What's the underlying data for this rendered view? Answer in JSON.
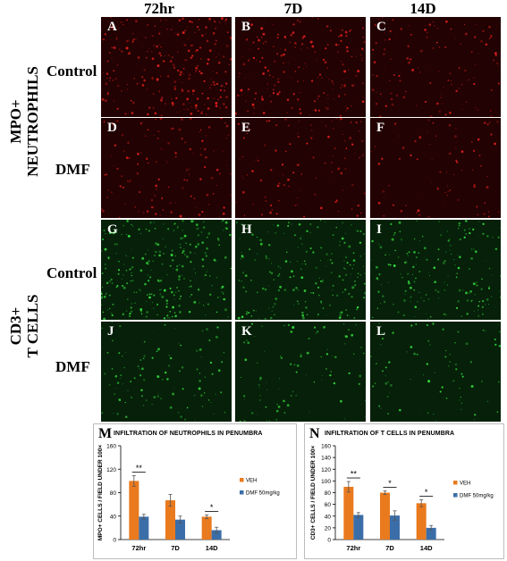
{
  "columns": [
    "72hr",
    "7D",
    "14D"
  ],
  "groups": {
    "mpo": "MPO+\nNEUTROPHILS",
    "cd3": "CD3+\nT CELLS"
  },
  "rows": [
    "Control",
    "DMF",
    "Control",
    "DMF"
  ],
  "panels": [
    {
      "letter": "A",
      "stain": "red",
      "density": 0.9
    },
    {
      "letter": "B",
      "stain": "red",
      "density": 0.6
    },
    {
      "letter": "C",
      "stain": "red",
      "density": 0.3
    },
    {
      "letter": "D",
      "stain": "red",
      "density": 0.35
    },
    {
      "letter": "E",
      "stain": "red",
      "density": 0.3
    },
    {
      "letter": "F",
      "stain": "red",
      "density": 0.15
    },
    {
      "letter": "G",
      "stain": "green",
      "density": 0.9
    },
    {
      "letter": "H",
      "stain": "green",
      "density": 0.6
    },
    {
      "letter": "I",
      "stain": "green",
      "density": 0.55
    },
    {
      "letter": "J",
      "stain": "green",
      "density": 0.25
    },
    {
      "letter": "K",
      "stain": "green",
      "density": 0.2
    },
    {
      "letter": "L",
      "stain": "green",
      "density": 0.15
    }
  ],
  "colors": {
    "veh": "#e97a1e",
    "dmf": "#3b6ea8",
    "red_stain": "#e0201c",
    "green_stain": "#37e23f"
  },
  "chart_data": [
    {
      "letter": "M",
      "type": "bar",
      "title": "INFILTRATION OF  NEUTROPHILS IN PENUMBRA",
      "ylabel": "MPO+ CELLS / FIELD UNDER 100×",
      "categories": [
        "72hr",
        "7D",
        "14D"
      ],
      "ylim": [
        0,
        160
      ],
      "yticks": [
        0,
        40,
        80,
        120,
        160
      ],
      "series": [
        {
          "name": "VEH",
          "values": [
            100,
            67,
            39
          ],
          "errors": [
            9,
            10,
            3
          ]
        },
        {
          "name": "DMF 50mg/kg",
          "values": [
            39,
            34,
            16
          ],
          "errors": [
            4,
            6,
            5
          ]
        }
      ],
      "significance": [
        "**",
        "",
        "*"
      ]
    },
    {
      "letter": "N",
      "type": "bar",
      "title": "INFILTRATION OF  T CELLS IN PENUMBRA",
      "ylabel": "CD3+ CELLS / FIELD UNDER 100×",
      "categories": [
        "72hr",
        "7D",
        "14D"
      ],
      "ylim": [
        0,
        160
      ],
      "yticks": [
        0,
        20,
        40,
        60,
        80,
        100,
        120,
        140,
        160
      ],
      "series": [
        {
          "name": "VEH",
          "values": [
            90,
            80,
            62
          ],
          "errors": [
            9,
            3,
            6
          ]
        },
        {
          "name": "DMF 50mg/kg",
          "values": [
            42,
            41,
            20
          ],
          "errors": [
            4,
            8,
            4
          ]
        }
      ],
      "significance": [
        "**",
        "*",
        "*"
      ]
    }
  ]
}
